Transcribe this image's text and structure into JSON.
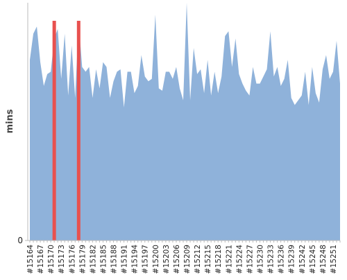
{
  "chart_data": {
    "type": "area",
    "y_label": "mins",
    "categories": [
      "#15164",
      null,
      null,
      "#15167",
      null,
      null,
      "#15170",
      null,
      null,
      "#15173",
      null,
      null,
      "#15176",
      null,
      null,
      "#15179",
      null,
      null,
      "#15182",
      null,
      null,
      "#15185",
      null,
      null,
      "#15188",
      null,
      null,
      "#15191",
      null,
      null,
      "#15194",
      null,
      null,
      "#15197",
      null,
      null,
      "#15200",
      null,
      null,
      "#15203",
      null,
      null,
      "#15206",
      null,
      null,
      "#15209",
      null,
      null,
      "#15212",
      null,
      null,
      "#15215",
      null,
      null,
      "#15218",
      null,
      null,
      "#15221",
      null,
      null,
      "#15224",
      null,
      null,
      "#15227",
      null,
      null,
      "#15230",
      null,
      null,
      "#15233",
      null,
      null,
      "#15236",
      null,
      null,
      "#15239",
      null,
      null,
      "#15242",
      null,
      null,
      "#15245",
      null,
      null,
      "#15248",
      null,
      null,
      "#15251",
      null,
      null
    ],
    "values": [
      76,
      87,
      90,
      75,
      65,
      70,
      71,
      85,
      89,
      68,
      87,
      61,
      82,
      60,
      92,
      73,
      71,
      73,
      60,
      72,
      64,
      75,
      73,
      60,
      67,
      71,
      72,
      56,
      71,
      71,
      62,
      65,
      78,
      69,
      67,
      68,
      95,
      64,
      63,
      71,
      71,
      68,
      73,
      64,
      59,
      100,
      59,
      81,
      70,
      72,
      62,
      76,
      61,
      71,
      62,
      69,
      86,
      88,
      73,
      85,
      70,
      66,
      63,
      61,
      73,
      66,
      66,
      69,
      72,
      88,
      69,
      73,
      65,
      68,
      76,
      60,
      57,
      59,
      61,
      71,
      57,
      73,
      62,
      58,
      72,
      78,
      68,
      71,
      84,
      66
    ],
    "color": "#8fb2da",
    "highlight_indices": [
      7,
      14
    ],
    "highlight_color": "#e8514f",
    "ylim": [
      0,
      100
    ],
    "yticks": [
      0
    ]
  }
}
